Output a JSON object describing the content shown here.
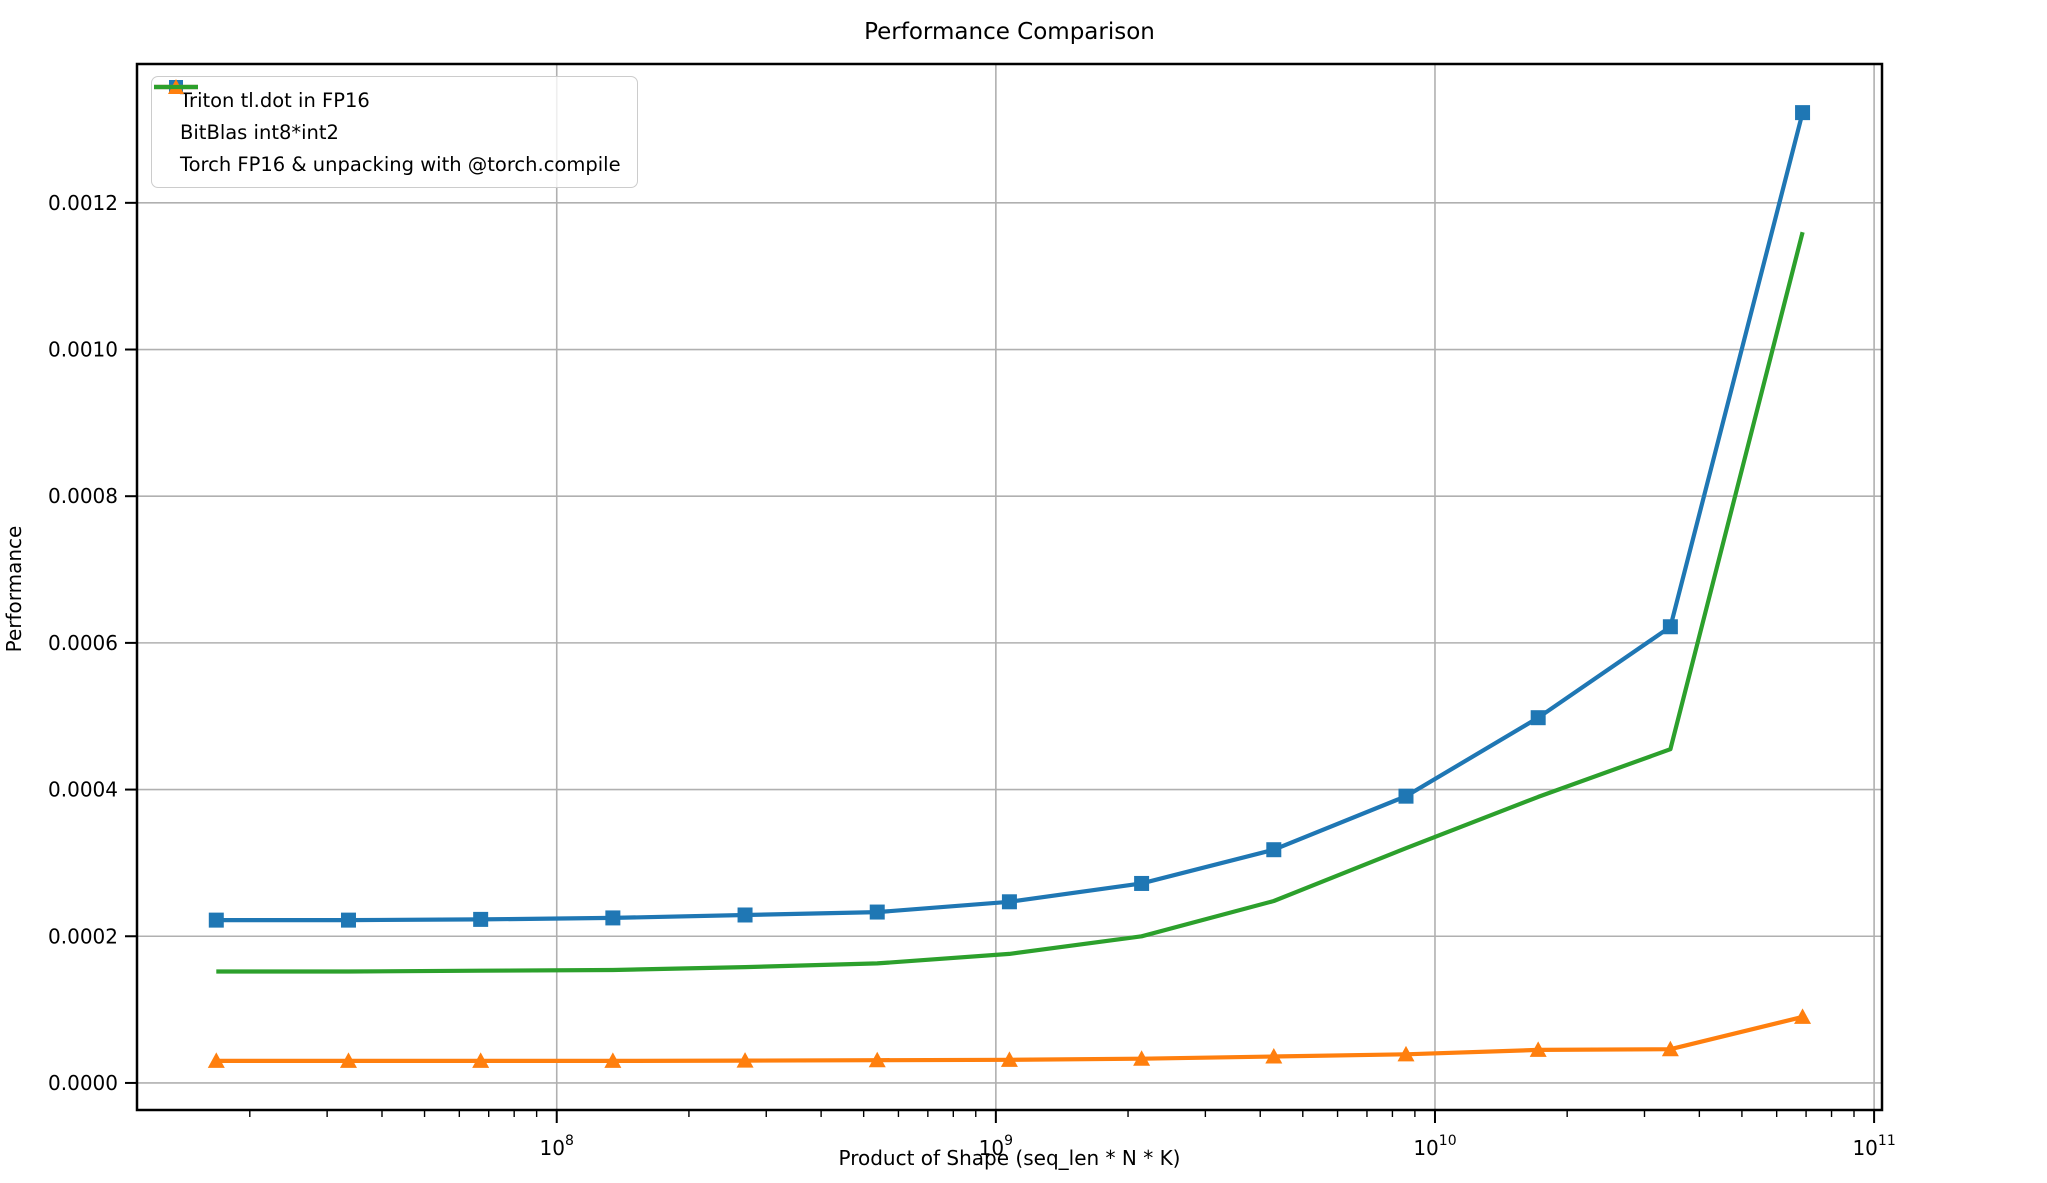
{
  "title": "Performance Comparison",
  "colors": {
    "blue": "#1f77b4",
    "orange": "#ff7f0e",
    "green": "#2ca02c",
    "grid": "#b0b0b0",
    "spine": "#000000",
    "legend_border": "#cccccc",
    "background": "#ffffff"
  },
  "chart_data": {
    "type": "line",
    "title": "Performance Comparison",
    "xlabel": "Product of Shape (seq_len * N * K)",
    "ylabel": "Performance",
    "x_scale": "log",
    "grid": true,
    "legend_position": "upper-left",
    "xlim": [
      11070000,
      104230000000
    ],
    "ylim": [
      -3.69e-05,
      0.0013893
    ],
    "x_major_ticks": [
      100000000,
      1000000000,
      10000000000,
      100000000000
    ],
    "x_major_tick_labels": [
      "10^8",
      "10^9",
      "10^10",
      "10^11"
    ],
    "y_ticks": [
      0.0,
      0.0002,
      0.0004,
      0.0006,
      0.0008,
      0.001,
      0.0012
    ],
    "y_tick_labels": [
      "0.0000",
      "0.0002",
      "0.0004",
      "0.0006",
      "0.0008",
      "0.0010",
      "0.0012"
    ],
    "x": [
      16777216,
      33554432,
      67108864,
      134217728,
      268435456,
      536870912,
      1073741824,
      2147483648,
      4294967296,
      8589934592,
      17179869184,
      34359738368,
      68719476736
    ],
    "series": [
      {
        "name": "Triton tl.dot in FP16",
        "color": "#1f77b4",
        "marker": "square",
        "values": [
          0.000222,
          0.000222,
          0.000223,
          0.000225,
          0.000229,
          0.000233,
          0.000247,
          0.000272,
          0.000318,
          0.000391,
          0.000498,
          0.000622,
          0.001323
        ]
      },
      {
        "name": "BitBlas int8*int2",
        "color": "#ff7f0e",
        "marker": "triangle",
        "values": [
          3e-05,
          3e-05,
          3e-05,
          3e-05,
          3.05e-05,
          3.1e-05,
          3.15e-05,
          3.3e-05,
          3.6e-05,
          3.9e-05,
          4.5e-05,
          4.6e-05,
          9e-05
        ]
      },
      {
        "name": "Torch FP16 & unpacking with @torch.compile",
        "color": "#2ca02c",
        "marker": "none",
        "values": [
          0.000152,
          0.000152,
          0.000153,
          0.000154,
          0.000158,
          0.000163,
          0.000176,
          0.0002,
          0.000248,
          0.00032,
          0.00039,
          0.000455,
          0.00116
        ]
      }
    ]
  }
}
